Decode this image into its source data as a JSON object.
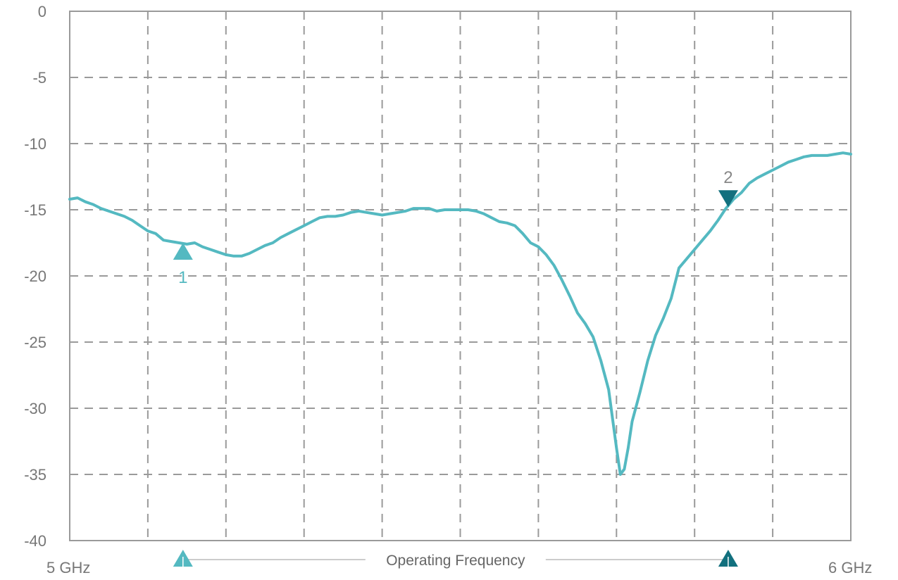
{
  "chart_data": {
    "type": "line",
    "title": "",
    "xlabel": "",
    "ylabel": "",
    "xlim": [
      5.0,
      6.0
    ],
    "ylim": [
      -40,
      0
    ],
    "x_tick_labels": {
      "start": "5 GHz",
      "end": "6 GHz"
    },
    "y_ticks": [
      0,
      -5,
      -10,
      -15,
      -20,
      -25,
      -30,
      -35,
      -40
    ],
    "y_tick_labels": [
      "0",
      "-5",
      "-10",
      "-15",
      "-20",
      "-25",
      "-30",
      "-35",
      "-40"
    ],
    "grid": true,
    "vertical_gridlines": 10,
    "series": [
      {
        "color": "#54b9c1",
        "points": [
          [
            5.0,
            -14.2
          ],
          [
            5.01,
            -14.1
          ],
          [
            5.02,
            -14.4
          ],
          [
            5.03,
            -14.6
          ],
          [
            5.04,
            -14.9
          ],
          [
            5.05,
            -15.1
          ],
          [
            5.06,
            -15.3
          ],
          [
            5.07,
            -15.5
          ],
          [
            5.08,
            -15.8
          ],
          [
            5.09,
            -16.2
          ],
          [
            5.1,
            -16.6
          ],
          [
            5.11,
            -16.8
          ],
          [
            5.12,
            -17.3
          ],
          [
            5.13,
            -17.4
          ],
          [
            5.14,
            -17.5
          ],
          [
            5.15,
            -17.6
          ],
          [
            5.16,
            -17.5
          ],
          [
            5.17,
            -17.8
          ],
          [
            5.18,
            -18.0
          ],
          [
            5.19,
            -18.2
          ],
          [
            5.2,
            -18.4
          ],
          [
            5.21,
            -18.5
          ],
          [
            5.22,
            -18.5
          ],
          [
            5.23,
            -18.3
          ],
          [
            5.24,
            -18.0
          ],
          [
            5.25,
            -17.7
          ],
          [
            5.26,
            -17.5
          ],
          [
            5.27,
            -17.1
          ],
          [
            5.28,
            -16.8
          ],
          [
            5.29,
            -16.5
          ],
          [
            5.3,
            -16.2
          ],
          [
            5.31,
            -15.9
          ],
          [
            5.32,
            -15.6
          ],
          [
            5.33,
            -15.5
          ],
          [
            5.34,
            -15.5
          ],
          [
            5.35,
            -15.4
          ],
          [
            5.36,
            -15.2
          ],
          [
            5.37,
            -15.1
          ],
          [
            5.38,
            -15.2
          ],
          [
            5.39,
            -15.3
          ],
          [
            5.4,
            -15.4
          ],
          [
            5.41,
            -15.3
          ],
          [
            5.42,
            -15.2
          ],
          [
            5.43,
            -15.1
          ],
          [
            5.44,
            -14.9
          ],
          [
            5.45,
            -14.9
          ],
          [
            5.46,
            -14.9
          ],
          [
            5.47,
            -15.1
          ],
          [
            5.48,
            -15.0
          ],
          [
            5.49,
            -15.0
          ],
          [
            5.5,
            -15.0
          ],
          [
            5.51,
            -15.0
          ],
          [
            5.52,
            -15.1
          ],
          [
            5.53,
            -15.3
          ],
          [
            5.54,
            -15.6
          ],
          [
            5.55,
            -15.9
          ],
          [
            5.56,
            -16.0
          ],
          [
            5.57,
            -16.2
          ],
          [
            5.58,
            -16.8
          ],
          [
            5.59,
            -17.5
          ],
          [
            5.6,
            -17.8
          ],
          [
            5.61,
            -18.4
          ],
          [
            5.62,
            -19.2
          ],
          [
            5.63,
            -20.3
          ],
          [
            5.64,
            -21.5
          ],
          [
            5.65,
            -22.8
          ],
          [
            5.66,
            -23.6
          ],
          [
            5.67,
            -24.6
          ],
          [
            5.68,
            -26.4
          ],
          [
            5.69,
            -28.6
          ],
          [
            5.7,
            -33.0
          ],
          [
            5.705,
            -35.0
          ],
          [
            5.71,
            -34.6
          ],
          [
            5.715,
            -33.0
          ],
          [
            5.72,
            -31.0
          ],
          [
            5.73,
            -28.8
          ],
          [
            5.74,
            -26.4
          ],
          [
            5.75,
            -24.5
          ],
          [
            5.76,
            -23.2
          ],
          [
            5.77,
            -21.7
          ],
          [
            5.78,
            -19.4
          ],
          [
            5.79,
            -18.7
          ],
          [
            5.8,
            -18.0
          ],
          [
            5.81,
            -17.3
          ],
          [
            5.82,
            -16.6
          ],
          [
            5.83,
            -15.8
          ],
          [
            5.84,
            -14.9
          ],
          [
            5.85,
            -14.2
          ],
          [
            5.86,
            -13.7
          ],
          [
            5.87,
            -13.0
          ],
          [
            5.88,
            -12.6
          ],
          [
            5.89,
            -12.3
          ],
          [
            5.9,
            -12.0
          ],
          [
            5.91,
            -11.7
          ],
          [
            5.92,
            -11.4
          ],
          [
            5.93,
            -11.2
          ],
          [
            5.94,
            -11.0
          ],
          [
            5.95,
            -10.9
          ],
          [
            5.96,
            -10.9
          ],
          [
            5.97,
            -10.9
          ],
          [
            5.98,
            -10.8
          ],
          [
            5.99,
            -10.7
          ],
          [
            6.0,
            -10.8
          ]
        ]
      }
    ],
    "markers": [
      {
        "label": "1",
        "x": 5.145,
        "y": -17.5,
        "direction": "up",
        "color": "#54b9c1"
      },
      {
        "label": "2",
        "x": 5.843,
        "y": -14.8,
        "direction": "down",
        "color": "#12707e"
      }
    ],
    "operating_band": {
      "label": "Operating Frequency",
      "start": 5.145,
      "end": 5.843,
      "start_color": "#54b9c1",
      "end_color": "#12707e"
    }
  },
  "colors": {
    "axis": "#9a9a9a",
    "grid": "#9a9a9a",
    "band_line": "#bbbbbb"
  }
}
